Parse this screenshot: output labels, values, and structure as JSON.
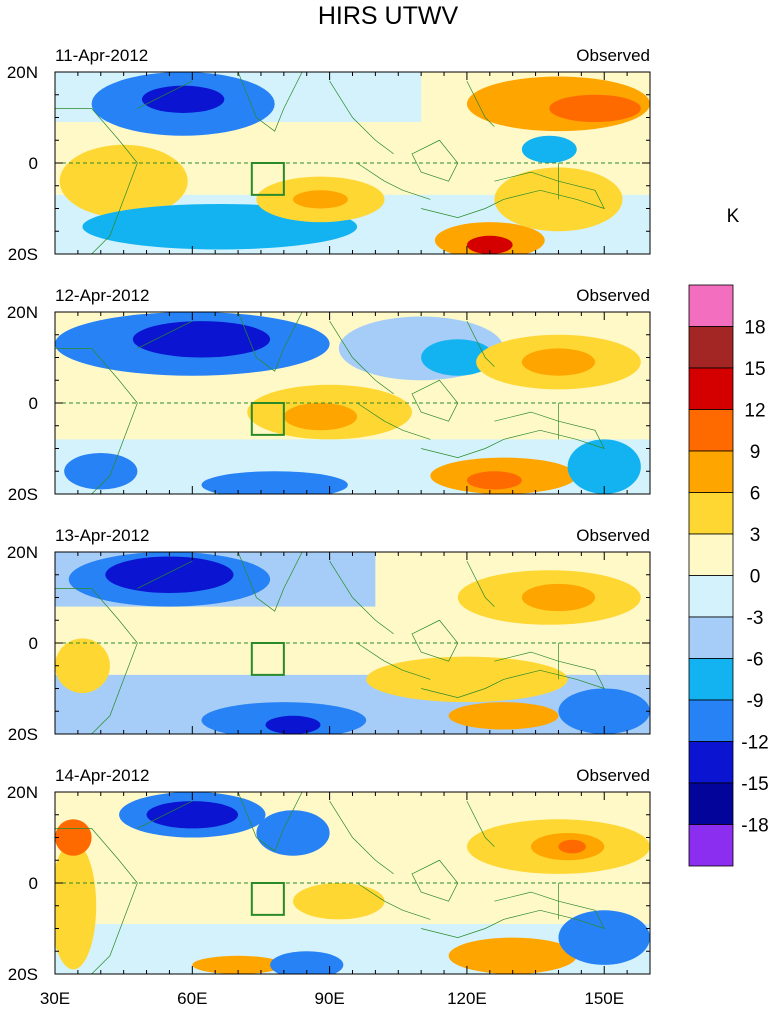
{
  "title": "HIRS UTWV",
  "panels": [
    {
      "date": "11-Apr-2012",
      "label": "Observed"
    },
    {
      "date": "12-Apr-2012",
      "label": "Observed"
    },
    {
      "date": "13-Apr-2012",
      "label": "Observed"
    },
    {
      "date": "14-Apr-2012",
      "label": "Observed"
    }
  ],
  "lat_labels": [
    "20N",
    "0",
    "20S"
  ],
  "lon_labels": [
    "30E",
    "60E",
    "90E",
    "120E",
    "150E"
  ],
  "colorbar": {
    "unit": "K",
    "labels": [
      "18",
      "15",
      "12",
      "9",
      "6",
      "3",
      "0",
      "-3",
      "-6",
      "-9",
      "-12",
      "-15",
      "-18"
    ],
    "colors": [
      "#f46ec0",
      "#a32624",
      "#d40000",
      "#ff6a00",
      "#ffa500",
      "#ffd733",
      "#fff9c8",
      "#d3f2fb",
      "#a5cdf7",
      "#13b3f1",
      "#2782f5",
      "#0a14d1",
      "#03049a",
      "#8b2ef0"
    ]
  },
  "colors": {
    "land": "#2a8a2a",
    "background": "#fff9c8"
  }
}
